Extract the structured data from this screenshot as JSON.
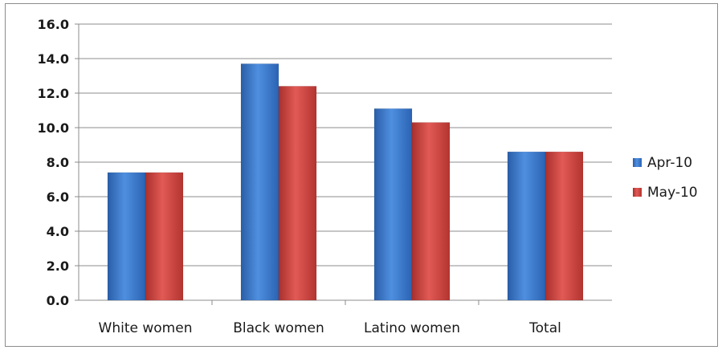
{
  "chart_data": {
    "type": "bar",
    "categories": [
      "White women",
      "Black women",
      "Latino women",
      "Total"
    ],
    "series": [
      {
        "name": "Apr-10",
        "color": "#3a74c8",
        "values": [
          7.4,
          13.7,
          11.1,
          8.6
        ]
      },
      {
        "name": "May-10",
        "color": "#c8413e",
        "values": [
          7.4,
          12.4,
          10.3,
          8.6
        ]
      }
    ],
    "y_ticks": [
      "0.0",
      "2.0",
      "4.0",
      "6.0",
      "8.0",
      "10.0",
      "12.0",
      "14.0",
      "16.0"
    ],
    "ylim": [
      0,
      16
    ],
    "grid": true,
    "legend_position": "right",
    "title": "",
    "xlabel": "",
    "ylabel": ""
  }
}
